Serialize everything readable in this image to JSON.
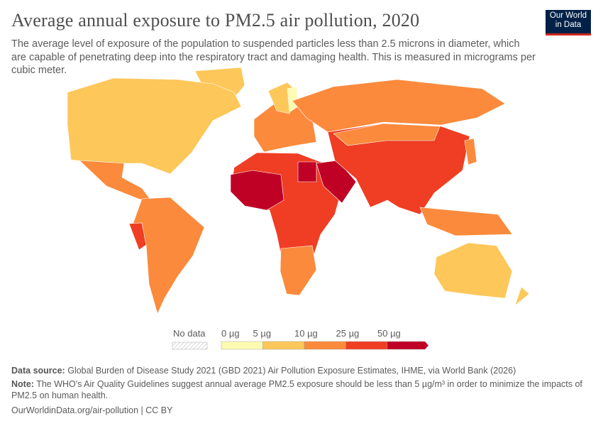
{
  "header": {
    "title": "Average annual exposure to PM2.5 air pollution, 2020",
    "subtitle": "The average level of exposure of the population to suspended particles less than 2.5 microns in diameter, which are capable of penetrating deep into the respiratory tract and damaging health. This is measured in micrograms per cubic meter.",
    "logo_text": "Our World in Data"
  },
  "legend": {
    "no_data_label": "No data",
    "bins": [
      {
        "label": "0 µg",
        "color": "#fdfbb1"
      },
      {
        "label": "5 µg",
        "color": "#fdc75a"
      },
      {
        "label": "10 µg",
        "color": "#fb8a3c"
      },
      {
        "label": "25 µg",
        "color": "#ef3e23"
      },
      {
        "label": "50 µg",
        "color": "#bf0126"
      }
    ]
  },
  "map_data": {
    "year": 2020,
    "regions": [
      {
        "name": "Greenland",
        "bin": 1
      },
      {
        "name": "North America",
        "bin": 1
      },
      {
        "name": "Mexico & Central America",
        "bin": 2
      },
      {
        "name": "South America",
        "bin": 2
      },
      {
        "name": "Peru",
        "bin": 3
      },
      {
        "name": "Europe",
        "bin": 2
      },
      {
        "name": "Scandinavia",
        "bin": 1
      },
      {
        "name": "Finland",
        "bin": 0
      },
      {
        "name": "Russia",
        "bin": 2
      },
      {
        "name": "Northern & Central Africa",
        "bin": 3
      },
      {
        "name": "West Africa",
        "bin": 4
      },
      {
        "name": "Egypt",
        "bin": 4
      },
      {
        "name": "Southern Africa",
        "bin": 2
      },
      {
        "name": "Arabian Peninsula",
        "bin": 4
      },
      {
        "name": "South & East Asia",
        "bin": 3
      },
      {
        "name": "Central Asia & Mongolia",
        "bin": 2
      },
      {
        "name": "Japan",
        "bin": 2
      },
      {
        "name": "Southeast Asian islands",
        "bin": 2
      },
      {
        "name": "Australia",
        "bin": 1
      },
      {
        "name": "New Zealand",
        "bin": 1
      }
    ]
  },
  "footer": {
    "source_label": "Data source:",
    "source_text": "Global Burden of Disease Study 2021 (GBD 2021) Air Pollution Exposure Estimates, IHME, via World Bank (2026)",
    "note_label": "Note:",
    "note_text": "The WHO's Air Quality Guidelines suggest annual average PM2.5 exposure should be less than 5 µg/m³ in order to minimize the impacts of PM2.5 on human health.",
    "url": "OurWorldinData.org/air-pollution | CC BY"
  }
}
